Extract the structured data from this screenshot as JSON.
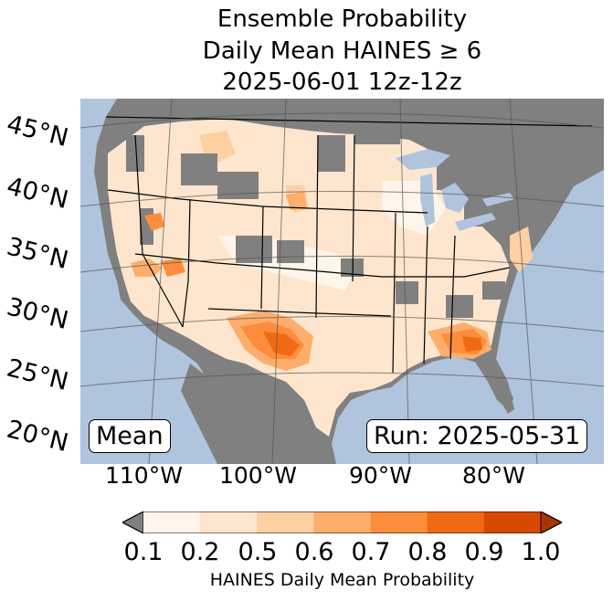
{
  "title": {
    "line1": "Ensemble Probability",
    "line2": "Daily Mean HAINES ≥ 6",
    "line3": "2025-06-01 12z-12z"
  },
  "lat_labels": [
    "45°N",
    "40°N",
    "35°N",
    "30°N",
    "25°N",
    "20°N"
  ],
  "lon_labels": [
    "110°W",
    "100°W",
    "90°W",
    "80°W"
  ],
  "mean_label": "Mean",
  "run_label": "Run: 2025-05-31",
  "colorbar": {
    "label": "HAINES Daily Mean Probability",
    "ticks": [
      "0.1",
      "0.2",
      "0.5",
      "0.6",
      "0.7",
      "0.8",
      "0.9",
      "1.0"
    ],
    "colors": [
      "#fff5eb",
      "#fee6ce",
      "#fdd0a2",
      "#fdae6b",
      "#fd8d3c",
      "#f16913",
      "#d94801"
    ],
    "under_color": "#808080",
    "over_color": "#a63603"
  },
  "colors": {
    "ocean": "#b0c4de",
    "no_data_land": "#808080",
    "boundary": "#000000",
    "graticule": "#555555"
  }
}
